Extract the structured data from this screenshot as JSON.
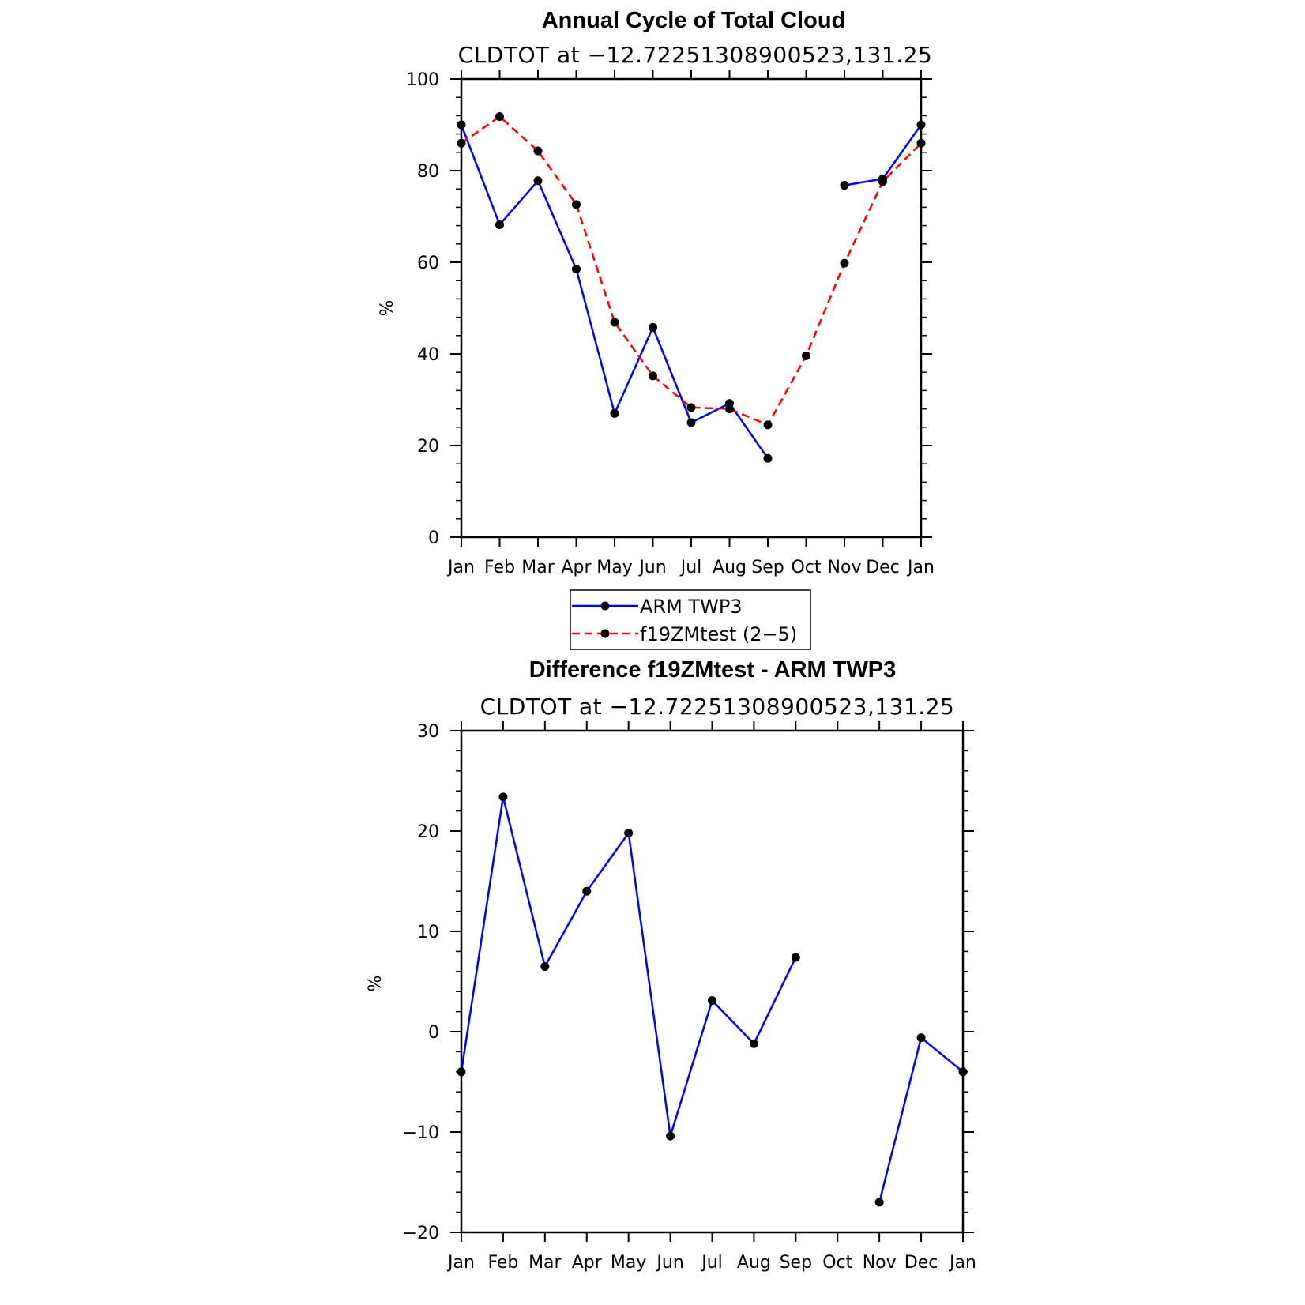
{
  "months": [
    "Jan",
    "Feb",
    "Mar",
    "Apr",
    "May",
    "Jun",
    "Jul",
    "Aug",
    "Sep",
    "Oct",
    "Nov",
    "Dec",
    "Jan"
  ],
  "chart_data": [
    {
      "type": "line",
      "title": "Annual Cycle of Total Cloud",
      "subtitle": "CLDTOT at −12.72251308900523,131.25",
      "ylabel": "%",
      "xlabel": "",
      "categories": [
        "Jan",
        "Feb",
        "Mar",
        "Apr",
        "May",
        "Jun",
        "Jul",
        "Aug",
        "Sep",
        "Oct",
        "Nov",
        "Dec",
        "Jan"
      ],
      "ylim": [
        0,
        100
      ],
      "yticks": [
        "0",
        "20",
        "40",
        "60",
        "80",
        "100"
      ],
      "grid": false,
      "legend_position": "below",
      "series": [
        {
          "name": "ARM TWP3",
          "color": "#0000ff",
          "dash": "solid",
          "values": [
            90,
            68.2,
            77.8,
            58.5,
            27,
            45.8,
            25,
            29.2,
            17.2,
            null,
            76.8,
            78.2,
            90
          ]
        },
        {
          "name": "f19ZMtest (2−5)",
          "color": "#ff0000",
          "dash": "dashed",
          "values": [
            86,
            91.8,
            84.3,
            72.6,
            46.9,
            35.2,
            28.3,
            28,
            24.5,
            39.6,
            59.8,
            77.6,
            86
          ]
        }
      ]
    },
    {
      "type": "line",
      "title": "Difference f19ZMtest - ARM TWP3",
      "subtitle": "CLDTOT at −12.72251308900523,131.25",
      "ylabel": "%",
      "xlabel": "",
      "categories": [
        "Jan",
        "Feb",
        "Mar",
        "Apr",
        "May",
        "Jun",
        "Jul",
        "Aug",
        "Sep",
        "Oct",
        "Nov",
        "Dec",
        "Jan"
      ],
      "ylim": [
        -20,
        30
      ],
      "yticks": [
        "−20",
        "−10",
        "0",
        "10",
        "20",
        "30"
      ],
      "grid": false,
      "series": [
        {
          "color": "#0000ff",
          "dash": "solid",
          "values": [
            -4,
            23.4,
            6.5,
            14,
            19.8,
            -10.4,
            3.1,
            -1.2,
            7.4,
            null,
            -17,
            -0.6,
            -4
          ]
        }
      ]
    }
  ]
}
